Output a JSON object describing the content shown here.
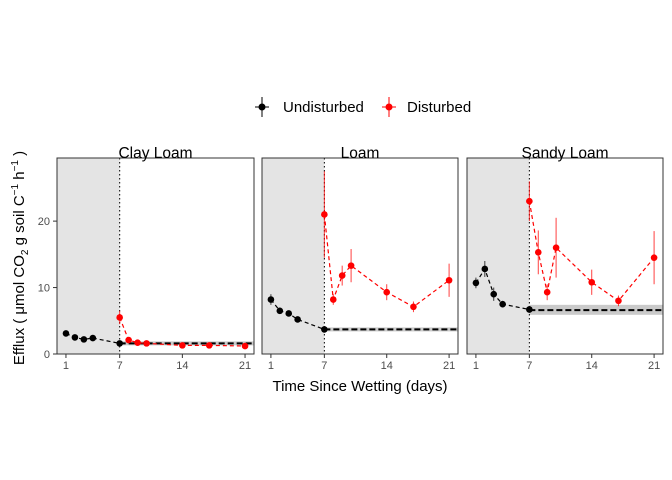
{
  "chart_data": {
    "type": "line",
    "xlabel": "Time Since Wetting (days)",
    "ylabel_parts": [
      "Efflux ( μmol CO",
      "2",
      " g soil C",
      "−1",
      " h",
      "−1",
      " )"
    ],
    "x_ticks": [
      1,
      7,
      14,
      21
    ],
    "y_ticks": [
      0,
      10,
      20
    ],
    "xlim": [
      0,
      22
    ],
    "ylim": [
      0,
      29.5
    ],
    "wetting_day": 7,
    "legend": {
      "position": "top",
      "entries": [
        {
          "name": "Undisturbed",
          "color": "#000000"
        },
        {
          "name": "Disturbed",
          "color": "#ff0000"
        }
      ]
    },
    "colors": {
      "undisturbed": "#000000",
      "disturbed": "#ff0000",
      "shade": "#e4e4e4",
      "band": "#bdbdbd"
    },
    "panels": [
      {
        "title": "Clay Loam",
        "undisturbed_mean": 1.6,
        "undisturbed_band": [
          1.3,
          1.9
        ],
        "series": [
          {
            "name": "Undisturbed",
            "x": [
              1,
              2,
              3,
              4,
              7
            ],
            "y": [
              3.1,
              2.5,
              2.2,
              2.4,
              1.6
            ],
            "err": [
              0.3,
              0.3,
              0.3,
              0.3,
              0.2
            ]
          },
          {
            "name": "Disturbed",
            "x": [
              7,
              8,
              9,
              10,
              14,
              17,
              21
            ],
            "y": [
              5.5,
              2.1,
              1.7,
              1.6,
              1.3,
              1.3,
              1.2
            ],
            "err": [
              1.0,
              0.4,
              0.3,
              0.3,
              0.3,
              0.3,
              0.3
            ]
          }
        ]
      },
      {
        "title": "Loam",
        "undisturbed_mean": 3.7,
        "undisturbed_band": [
          3.4,
          4.0
        ],
        "series": [
          {
            "name": "Undisturbed",
            "x": [
              1,
              2,
              3,
              4,
              7
            ],
            "y": [
              8.2,
              6.5,
              6.1,
              5.2,
              3.7
            ],
            "err": [
              0.8,
              0.4,
              0.4,
              0.4,
              0.3
            ]
          },
          {
            "name": "Disturbed",
            "x": [
              7,
              8,
              9,
              10,
              14,
              17,
              21
            ],
            "y": [
              21.0,
              8.2,
              11.8,
              13.3,
              9.3,
              7.1,
              11.1
            ],
            "err": [
              6.5,
              0.8,
              1.5,
              2.5,
              1.2,
              0.8,
              2.5
            ]
          }
        ]
      },
      {
        "title": "Sandy Loam",
        "undisturbed_mean": 6.6,
        "undisturbed_band": [
          5.9,
          7.4
        ],
        "series": [
          {
            "name": "Undisturbed",
            "x": [
              1,
              2,
              3,
              4,
              7
            ],
            "y": [
              10.7,
              12.8,
              9.0,
              7.5,
              6.7
            ],
            "err": [
              0.8,
              1.2,
              1.0,
              0.5,
              0.5
            ]
          },
          {
            "name": "Disturbed",
            "x": [
              7,
              8,
              9,
              10,
              14,
              17,
              21
            ],
            "y": [
              23.0,
              15.3,
              9.3,
              16.0,
              10.8,
              8.0,
              14.5
            ],
            "err": [
              3.0,
              3.3,
              1.2,
              4.5,
              1.9,
              0.8,
              4.0
            ]
          }
        ]
      }
    ]
  }
}
